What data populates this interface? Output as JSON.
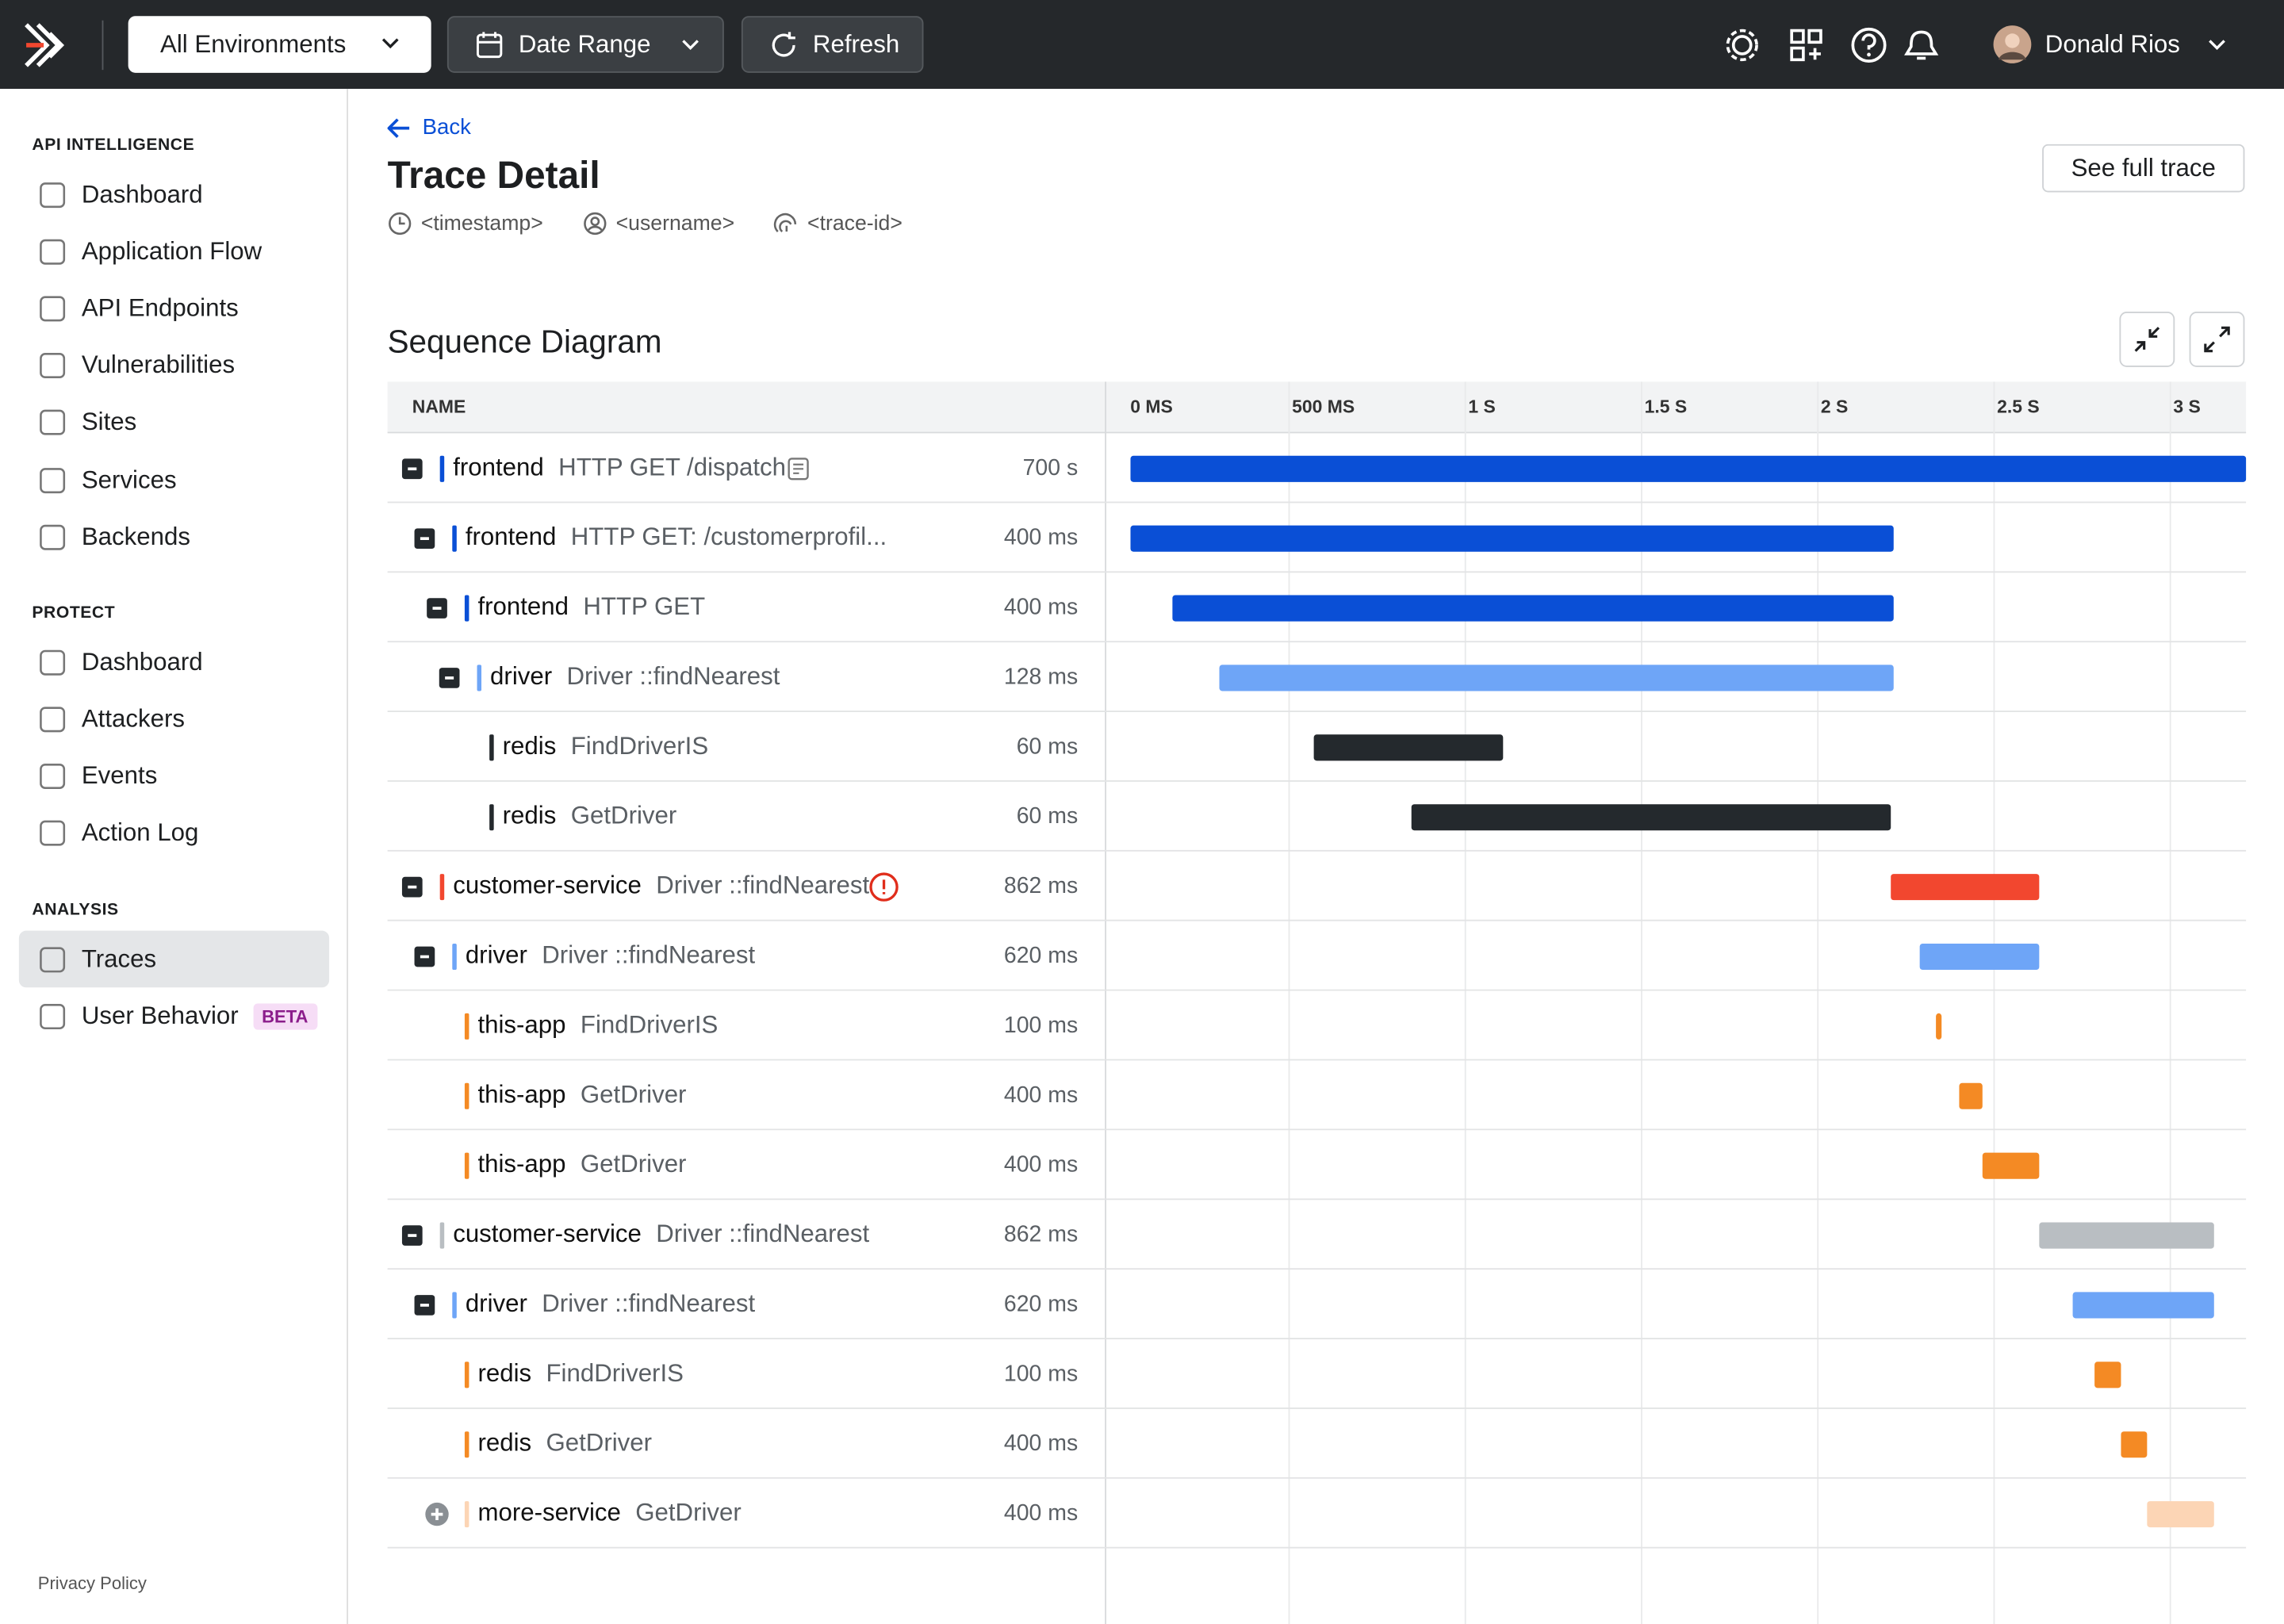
{
  "topbar": {
    "environment": "All Environments",
    "date_range": "Date Range",
    "refresh": "Refresh",
    "user": "Donald Rios"
  },
  "sidebar": {
    "sections": [
      {
        "title": "API INTELLIGENCE",
        "items": [
          {
            "label": "Dashboard"
          },
          {
            "label": "Application Flow"
          },
          {
            "label": "API Endpoints"
          },
          {
            "label": "Vulnerabilities"
          },
          {
            "label": "Sites"
          },
          {
            "label": "Services"
          },
          {
            "label": "Backends"
          }
        ]
      },
      {
        "title": "PROTECT",
        "items": [
          {
            "label": "Dashboard"
          },
          {
            "label": "Attackers"
          },
          {
            "label": "Events"
          },
          {
            "label": "Action Log"
          }
        ]
      },
      {
        "title": "ANALYSIS",
        "items": [
          {
            "label": "Traces",
            "selected": true
          },
          {
            "label": "User Behavior",
            "badge": "BETA"
          }
        ]
      }
    ],
    "footer": "Privacy Policy"
  },
  "header": {
    "back": "Back",
    "title": "Trace Detail",
    "timestamp": "<timestamp>",
    "username": "<username>",
    "trace_id": "<trace-id>",
    "action": "See full trace"
  },
  "sequence": {
    "title": "Sequence Diagram",
    "name_column": "NAME",
    "xlim": [
      0,
      3215
    ],
    "xticks": [
      {
        "value": 0,
        "label": "0 MS"
      },
      {
        "value": 500,
        "label": "500 MS"
      },
      {
        "value": 1000,
        "label": "1 S"
      },
      {
        "value": 1500,
        "label": "1.5 S"
      },
      {
        "value": 2000,
        "label": "2 S"
      },
      {
        "value": 2500,
        "label": "2.5 S"
      },
      {
        "value": 3000,
        "label": "3 S"
      }
    ],
    "rows": [
      {
        "service": "frontend",
        "operation": "HTTP GET /dispatch",
        "duration": "700 s",
        "color": "#0a4fd6",
        "start": 50,
        "end": 3215,
        "expanded": true,
        "icon": "note",
        "children": [
          {
            "service": "frontend",
            "operation": "HTTP GET: /customerprofil...",
            "duration": "400 ms",
            "color": "#0a4fd6",
            "start": 50,
            "end": 2215,
            "expanded": true,
            "children": [
              {
                "service": "frontend",
                "operation": "HTTP GET",
                "duration": "400 ms",
                "color": "#0a4fd6",
                "start": 169,
                "end": 2215,
                "expanded": true,
                "children": [
                  {
                    "service": "driver",
                    "operation": "Driver ::findNearest",
                    "duration": "128 ms",
                    "color": "#6ea5f7",
                    "start": 302,
                    "end": 2215,
                    "expanded": true,
                    "children": [
                      {
                        "service": "redis",
                        "operation": "FindDriverIS",
                        "duration": "60 ms",
                        "color": "#24292d",
                        "start": 570,
                        "end": 1107
                      },
                      {
                        "service": "redis",
                        "operation": "GetDriver",
                        "duration": "60 ms",
                        "color": "#24292d",
                        "start": 847,
                        "end": 2207
                      }
                    ]
                  }
                ]
              }
            ]
          }
        ]
      },
      {
        "service": "customer-service",
        "operation": "Driver ::findNearest",
        "duration": "862 ms",
        "color": "#f2472f",
        "start": 2207,
        "end": 2628,
        "expanded": true,
        "icon": "error",
        "children": [
          {
            "service": "driver",
            "operation": "Driver ::findNearest",
            "duration": "620 ms",
            "color": "#6ea5f7",
            "start": 2289,
            "end": 2628,
            "expanded": true,
            "children": [
              {
                "service": "this-app",
                "operation": "FindDriverIS",
                "duration": "100 ms",
                "color": "#f48a24",
                "start": 2335,
                "end": 2351
              },
              {
                "service": "this-app",
                "operation": "GetDriver",
                "duration": "400 ms",
                "color": "#f48a24",
                "start": 2401,
                "end": 2467
              },
              {
                "service": "this-app",
                "operation": "GetDriver",
                "duration": "400 ms",
                "color": "#f48a24",
                "start": 2467,
                "end": 2628
              }
            ]
          }
        ]
      },
      {
        "service": "customer-service",
        "operation": "Driver ::findNearest",
        "duration": "862 ms",
        "color": "#b9bec2",
        "start": 2628,
        "end": 3124,
        "expanded": true,
        "children": [
          {
            "service": "driver",
            "operation": "Driver ::findNearest",
            "duration": "620 ms",
            "color": "#6ea5f7",
            "start": 2723,
            "end": 3124,
            "expanded": true,
            "children": [
              {
                "service": "redis",
                "operation": "FindDriverIS",
                "duration": "100 ms",
                "color": "#f48a24",
                "start": 2785,
                "end": 2860
              },
              {
                "service": "redis",
                "operation": "GetDriver",
                "duration": "400 ms",
                "color": "#f48a24",
                "start": 2860,
                "end": 2934
              }
            ]
          }
        ]
      },
      {
        "service": "more-service",
        "operation": "GetDriver",
        "duration": "400 ms",
        "color": "#fcd5b5",
        "start": 2934,
        "end": 3124,
        "expanded": false
      }
    ]
  }
}
